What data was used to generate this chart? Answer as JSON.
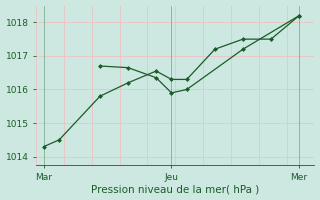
{
  "background_color": "#cce8e0",
  "grid_color_h": "#e8c8c8",
  "grid_color_v": "#e8c8c8",
  "line_color": "#1a5c28",
  "xlabel": "Pression niveau de la mer( hPa )",
  "ylim": [
    1013.75,
    1018.5
  ],
  "yticks": [
    1014,
    1015,
    1016,
    1017,
    1018
  ],
  "xtick_labels": [
    "Mar",
    "Jeu",
    "Mer"
  ],
  "xtick_positions": [
    0.0,
    0.5,
    1.0
  ],
  "vline_positions": [
    0.0,
    0.5,
    1.0
  ],
  "line1_x": [
    0.0,
    0.06,
    0.22,
    0.33,
    0.44,
    0.5,
    0.56,
    0.67,
    0.78,
    0.89,
    1.0
  ],
  "line1_y": [
    1014.3,
    1014.5,
    1015.8,
    1016.2,
    1016.55,
    1016.3,
    1016.3,
    1017.2,
    1017.5,
    1017.5,
    1018.2
  ],
  "line2_x": [
    0.22,
    0.33,
    0.44,
    0.5,
    0.56,
    0.78,
    1.0
  ],
  "line2_y": [
    1016.7,
    1016.65,
    1016.35,
    1015.9,
    1016.0,
    1017.2,
    1018.2
  ],
  "marker_size": 2.5,
  "line_width": 0.9,
  "xlabel_fontsize": 7.5,
  "tick_fontsize": 6.5
}
